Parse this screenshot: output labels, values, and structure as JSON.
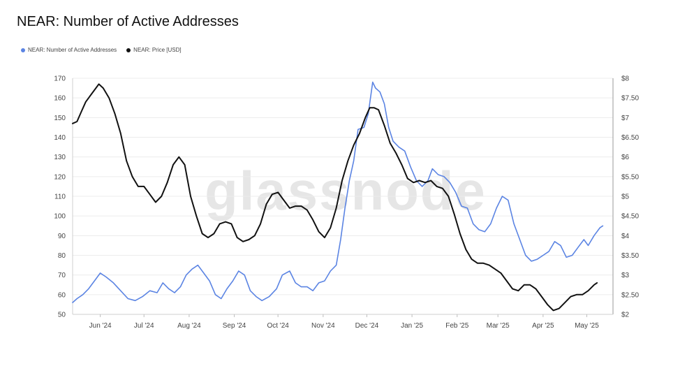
{
  "title": "NEAR: Number of Active Addresses",
  "legend": {
    "series_a": "NEAR: Number of Active Addresses",
    "series_b": "NEAR: Price [USD]"
  },
  "watermark": "glassnode",
  "colors": {
    "series_a": "#5b84e3",
    "series_b": "#111111",
    "grid": "#ececec"
  },
  "chart_data": {
    "type": "line",
    "title": "NEAR: Number of Active Addresses",
    "x_ticks": [
      "Jun '24",
      "Jul '24",
      "Aug '24",
      "Sep '24",
      "Oct '24",
      "Nov '24",
      "Dec '24",
      "Jan '25",
      "Feb '25",
      "Mar '25",
      "Apr '25",
      "May '25"
    ],
    "y_left_ticks": [
      50,
      60,
      70,
      80,
      90,
      100,
      110,
      120,
      130,
      140,
      150,
      160,
      170
    ],
    "y_right_ticks": [
      "$2",
      "$2.50",
      "$3",
      "$3.50",
      "$4",
      "$4.50",
      "$5",
      "$5.50",
      "$6",
      "$6.50",
      "$7",
      "$7.50",
      "$8"
    ],
    "y_left_lim": [
      50,
      170
    ],
    "y_right_lim": [
      2,
      8
    ],
    "x_range": [
      "2024-05-13",
      "2025-05-19"
    ],
    "grid": true,
    "legend_position": "top-left",
    "series": [
      {
        "name": "NEAR: Number of Active Addresses",
        "axis": "left",
        "points": [
          [
            "2024-05-13",
            56
          ],
          [
            "2024-05-16",
            58
          ],
          [
            "2024-05-20",
            60
          ],
          [
            "2024-05-24",
            63
          ],
          [
            "2024-05-28",
            67
          ],
          [
            "2024-06-01",
            71
          ],
          [
            "2024-06-05",
            69
          ],
          [
            "2024-06-10",
            66
          ],
          [
            "2024-06-15",
            62
          ],
          [
            "2024-06-20",
            58
          ],
          [
            "2024-06-25",
            57
          ],
          [
            "2024-06-30",
            59
          ],
          [
            "2024-07-05",
            62
          ],
          [
            "2024-07-10",
            61
          ],
          [
            "2024-07-14",
            66
          ],
          [
            "2024-07-18",
            63
          ],
          [
            "2024-07-22",
            61
          ],
          [
            "2024-07-26",
            64
          ],
          [
            "2024-07-30",
            70
          ],
          [
            "2024-08-03",
            73
          ],
          [
            "2024-08-07",
            75
          ],
          [
            "2024-08-11",
            71
          ],
          [
            "2024-08-15",
            67
          ],
          [
            "2024-08-19",
            60
          ],
          [
            "2024-08-23",
            58
          ],
          [
            "2024-08-27",
            63
          ],
          [
            "2024-08-31",
            67
          ],
          [
            "2024-09-04",
            72
          ],
          [
            "2024-09-08",
            70
          ],
          [
            "2024-09-12",
            62
          ],
          [
            "2024-09-16",
            59
          ],
          [
            "2024-09-20",
            57
          ],
          [
            "2024-09-25",
            59
          ],
          [
            "2024-09-30",
            63
          ],
          [
            "2024-10-04",
            70
          ],
          [
            "2024-10-09",
            72
          ],
          [
            "2024-10-13",
            66
          ],
          [
            "2024-10-17",
            64
          ],
          [
            "2024-10-21",
            64
          ],
          [
            "2024-10-25",
            62
          ],
          [
            "2024-10-29",
            66
          ],
          [
            "2024-11-02",
            67
          ],
          [
            "2024-11-06",
            72
          ],
          [
            "2024-11-10",
            75
          ],
          [
            "2024-11-13",
            88
          ],
          [
            "2024-11-16",
            104
          ],
          [
            "2024-11-19",
            118
          ],
          [
            "2024-11-22",
            128
          ],
          [
            "2024-11-25",
            144
          ],
          [
            "2024-11-29",
            145
          ],
          [
            "2024-12-02",
            152
          ],
          [
            "2024-12-05",
            168
          ],
          [
            "2024-12-07",
            165
          ],
          [
            "2024-12-10",
            163
          ],
          [
            "2024-12-13",
            157
          ],
          [
            "2024-12-16",
            145
          ],
          [
            "2024-12-19",
            138
          ],
          [
            "2024-12-23",
            135
          ],
          [
            "2024-12-27",
            133
          ],
          [
            "2024-12-31",
            125
          ],
          [
            "2025-01-04",
            118
          ],
          [
            "2025-01-08",
            115
          ],
          [
            "2025-01-12",
            118
          ],
          [
            "2025-01-15",
            124
          ],
          [
            "2025-01-19",
            121
          ],
          [
            "2025-01-23",
            120
          ],
          [
            "2025-01-27",
            117
          ],
          [
            "2025-01-31",
            112
          ],
          [
            "2025-02-04",
            105
          ],
          [
            "2025-02-08",
            104
          ],
          [
            "2025-02-12",
            96
          ],
          [
            "2025-02-16",
            93
          ],
          [
            "2025-02-20",
            92
          ],
          [
            "2025-02-24",
            96
          ],
          [
            "2025-02-28",
            104
          ],
          [
            "2025-03-04",
            110
          ],
          [
            "2025-03-08",
            108
          ],
          [
            "2025-03-12",
            96
          ],
          [
            "2025-03-16",
            88
          ],
          [
            "2025-03-20",
            80
          ],
          [
            "2025-03-24",
            77
          ],
          [
            "2025-03-28",
            78
          ],
          [
            "2025-04-01",
            80
          ],
          [
            "2025-04-05",
            82
          ],
          [
            "2025-04-09",
            87
          ],
          [
            "2025-04-13",
            85
          ],
          [
            "2025-04-17",
            79
          ],
          [
            "2025-04-21",
            80
          ],
          [
            "2025-04-25",
            84
          ],
          [
            "2025-04-29",
            88
          ],
          [
            "2025-05-02",
            85
          ],
          [
            "2025-05-06",
            90
          ],
          [
            "2025-05-10",
            94
          ],
          [
            "2025-05-12",
            95
          ]
        ]
      },
      {
        "name": "NEAR: Price [USD]",
        "axis": "right",
        "points": [
          [
            "2024-05-13",
            6.85
          ],
          [
            "2024-05-16",
            6.9
          ],
          [
            "2024-05-19",
            7.15
          ],
          [
            "2024-05-22",
            7.4
          ],
          [
            "2024-05-25",
            7.55
          ],
          [
            "2024-05-28",
            7.7
          ],
          [
            "2024-05-31",
            7.85
          ],
          [
            "2024-06-03",
            7.75
          ],
          [
            "2024-06-07",
            7.5
          ],
          [
            "2024-06-11",
            7.1
          ],
          [
            "2024-06-15",
            6.6
          ],
          [
            "2024-06-19",
            5.9
          ],
          [
            "2024-06-23",
            5.5
          ],
          [
            "2024-06-27",
            5.25
          ],
          [
            "2024-07-01",
            5.25
          ],
          [
            "2024-07-05",
            5.05
          ],
          [
            "2024-07-09",
            4.85
          ],
          [
            "2024-07-13",
            5.0
          ],
          [
            "2024-07-17",
            5.35
          ],
          [
            "2024-07-21",
            5.8
          ],
          [
            "2024-07-25",
            6.0
          ],
          [
            "2024-07-29",
            5.8
          ],
          [
            "2024-08-02",
            5.0
          ],
          [
            "2024-08-06",
            4.5
          ],
          [
            "2024-08-10",
            4.05
          ],
          [
            "2024-08-14",
            3.95
          ],
          [
            "2024-08-18",
            4.05
          ],
          [
            "2024-08-22",
            4.3
          ],
          [
            "2024-08-26",
            4.35
          ],
          [
            "2024-08-30",
            4.3
          ],
          [
            "2024-09-03",
            3.95
          ],
          [
            "2024-09-07",
            3.85
          ],
          [
            "2024-09-11",
            3.9
          ],
          [
            "2024-09-15",
            4.0
          ],
          [
            "2024-09-19",
            4.3
          ],
          [
            "2024-09-23",
            4.8
          ],
          [
            "2024-09-27",
            5.05
          ],
          [
            "2024-10-01",
            5.1
          ],
          [
            "2024-10-05",
            4.9
          ],
          [
            "2024-10-09",
            4.7
          ],
          [
            "2024-10-13",
            4.75
          ],
          [
            "2024-10-17",
            4.75
          ],
          [
            "2024-10-21",
            4.65
          ],
          [
            "2024-10-25",
            4.4
          ],
          [
            "2024-10-29",
            4.1
          ],
          [
            "2024-11-02",
            3.95
          ],
          [
            "2024-11-06",
            4.2
          ],
          [
            "2024-11-10",
            4.7
          ],
          [
            "2024-11-14",
            5.4
          ],
          [
            "2024-11-18",
            5.9
          ],
          [
            "2024-11-22",
            6.3
          ],
          [
            "2024-11-26",
            6.6
          ],
          [
            "2024-11-30",
            7.0
          ],
          [
            "2024-12-03",
            7.25
          ],
          [
            "2024-12-06",
            7.25
          ],
          [
            "2024-12-09",
            7.2
          ],
          [
            "2024-12-13",
            6.8
          ],
          [
            "2024-12-17",
            6.35
          ],
          [
            "2024-12-21",
            6.1
          ],
          [
            "2024-12-25",
            5.8
          ],
          [
            "2024-12-29",
            5.45
          ],
          [
            "2025-01-02",
            5.35
          ],
          [
            "2025-01-06",
            5.4
          ],
          [
            "2025-01-10",
            5.35
          ],
          [
            "2025-01-14",
            5.4
          ],
          [
            "2025-01-18",
            5.25
          ],
          [
            "2025-01-22",
            5.2
          ],
          [
            "2025-01-26",
            5.0
          ],
          [
            "2025-01-30",
            4.55
          ],
          [
            "2025-02-03",
            4.05
          ],
          [
            "2025-02-07",
            3.65
          ],
          [
            "2025-02-11",
            3.4
          ],
          [
            "2025-02-15",
            3.3
          ],
          [
            "2025-02-19",
            3.3
          ],
          [
            "2025-02-23",
            3.25
          ],
          [
            "2025-02-27",
            3.15
          ],
          [
            "2025-03-03",
            3.05
          ],
          [
            "2025-03-07",
            2.85
          ],
          [
            "2025-03-11",
            2.65
          ],
          [
            "2025-03-15",
            2.6
          ],
          [
            "2025-03-19",
            2.75
          ],
          [
            "2025-03-23",
            2.75
          ],
          [
            "2025-03-27",
            2.65
          ],
          [
            "2025-03-31",
            2.45
          ],
          [
            "2025-04-04",
            2.25
          ],
          [
            "2025-04-08",
            2.1
          ],
          [
            "2025-04-12",
            2.15
          ],
          [
            "2025-04-16",
            2.3
          ],
          [
            "2025-04-20",
            2.45
          ],
          [
            "2025-04-24",
            2.5
          ],
          [
            "2025-04-28",
            2.5
          ],
          [
            "2025-05-02",
            2.6
          ],
          [
            "2025-05-06",
            2.75
          ],
          [
            "2025-05-08",
            2.8
          ]
        ]
      }
    ]
  }
}
